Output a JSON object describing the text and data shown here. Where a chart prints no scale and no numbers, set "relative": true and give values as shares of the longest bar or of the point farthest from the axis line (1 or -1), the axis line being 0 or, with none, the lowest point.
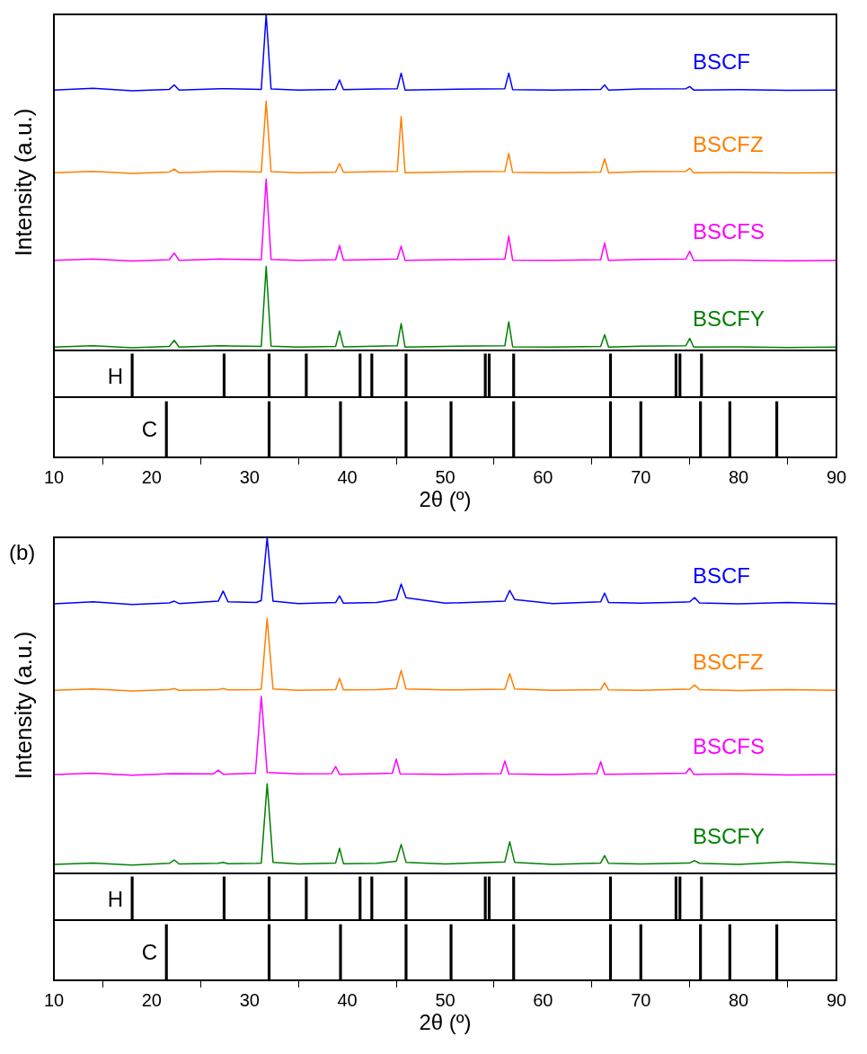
{
  "chart_data": [
    {
      "type": "line",
      "relative": true,
      "ylabel": "Intensity (a.u.)",
      "xlim": [
        10,
        90
      ],
      "legend": false,
      "marker": "none",
      "x": [
        10,
        14,
        18,
        21.8,
        22.3,
        22.8,
        27,
        31.2,
        31.7,
        32.2,
        35,
        38.8,
        39.2,
        39.6,
        43,
        45.1,
        45.5,
        45.9,
        50,
        56.1,
        56.5,
        56.9,
        61,
        65.9,
        66.3,
        66.7,
        70,
        74.6,
        75,
        75.4,
        80,
        85,
        90
      ],
      "series": [
        {
          "name": "BSCF",
          "color": "#0000ff",
          "values": [
            0.775,
            0.78,
            0.773,
            0.777,
            0.79,
            0.775,
            0.779,
            0.777,
            1.0,
            0.778,
            0.775,
            0.777,
            0.805,
            0.776,
            0.778,
            0.779,
            0.825,
            0.775,
            0.777,
            0.779,
            0.825,
            0.776,
            0.775,
            0.777,
            0.79,
            0.775,
            0.778,
            0.779,
            0.785,
            0.775,
            0.776,
            0.774,
            0.775
          ]
        },
        {
          "name": "BSCFZ",
          "color": "#ff7f00",
          "values": [
            0.529,
            0.533,
            0.527,
            0.531,
            0.54,
            0.529,
            0.533,
            0.531,
            0.742,
            0.532,
            0.529,
            0.531,
            0.556,
            0.53,
            0.532,
            0.533,
            0.696,
            0.529,
            0.531,
            0.533,
            0.586,
            0.53,
            0.529,
            0.531,
            0.57,
            0.529,
            0.532,
            0.533,
            0.542,
            0.529,
            0.53,
            0.528,
            0.529
          ]
        },
        {
          "name": "BSCFS",
          "color": "#ff00ff",
          "values": [
            0.268,
            0.272,
            0.266,
            0.27,
            0.29,
            0.268,
            0.272,
            0.27,
            0.51,
            0.271,
            0.268,
            0.27,
            0.312,
            0.269,
            0.271,
            0.272,
            0.31,
            0.268,
            0.27,
            0.272,
            0.34,
            0.269,
            0.268,
            0.27,
            0.32,
            0.268,
            0.271,
            0.272,
            0.295,
            0.268,
            0.269,
            0.267,
            0.268
          ]
        },
        {
          "name": "BSCFY",
          "color": "#008000",
          "values": [
            0.01,
            0.014,
            0.008,
            0.012,
            0.03,
            0.01,
            0.014,
            0.012,
            0.25,
            0.013,
            0.01,
            0.012,
            0.058,
            0.011,
            0.013,
            0.014,
            0.08,
            0.01,
            0.012,
            0.014,
            0.085,
            0.011,
            0.01,
            0.012,
            0.047,
            0.01,
            0.013,
            0.014,
            0.036,
            0.01,
            0.011,
            0.009,
            0.01
          ]
        }
      ]
    },
    {
      "type": "bar",
      "relative": true,
      "xlim": [
        10,
        90
      ],
      "legend": false,
      "series": [
        {
          "name": "H",
          "color": "#000000",
          "x": [
            18.0,
            27.4,
            32.0,
            35.8,
            41.3,
            42.5,
            46.0,
            54.1,
            54.5,
            57.0,
            66.9,
            73.6,
            74.0,
            76.2
          ],
          "values": [
            1,
            1,
            1,
            1,
            1,
            1,
            1,
            1,
            1,
            1,
            1,
            1,
            1,
            1
          ]
        }
      ]
    },
    {
      "type": "bar",
      "relative": true,
      "xlabel": "2θ (º)",
      "xlim": [
        10,
        90
      ],
      "xticks": [
        10,
        20,
        30,
        40,
        50,
        60,
        70,
        80,
        90
      ],
      "legend": false,
      "series": [
        {
          "name": "C",
          "color": "#000000",
          "x": [
            21.5,
            32.0,
            39.3,
            46.0,
            50.6,
            57.0,
            66.9,
            70.0,
            76.1,
            79.1,
            83.9
          ],
          "values": [
            1,
            1,
            1,
            1,
            1,
            1,
            1,
            1,
            1,
            1,
            1
          ]
        }
      ]
    },
    {
      "type": "line",
      "relative": true,
      "ylabel": "Intensity (a.u.)",
      "xlim": [
        10,
        90
      ],
      "legend": false,
      "marker": "none",
      "annotations": [
        "(b)"
      ],
      "x": [
        10,
        14,
        18,
        21.8,
        22.3,
        22.8,
        26.8,
        27.3,
        27.8,
        30.7,
        31.2,
        31.8,
        32.4,
        35,
        38.8,
        39.2,
        39.6,
        43,
        45.0,
        45.5,
        46.0,
        50,
        56.1,
        56.6,
        57.1,
        61,
        65.9,
        66.3,
        66.7,
        70,
        75.0,
        75.5,
        76,
        80,
        85,
        90
      ],
      "series": [
        {
          "name": "BSCF",
          "color": "#0000ff",
          "values": [
            0.802,
            0.808,
            0.8,
            0.805,
            0.81,
            0.803,
            0.81,
            0.84,
            0.808,
            0.806,
            0.812,
            1.0,
            0.81,
            0.803,
            0.806,
            0.826,
            0.804,
            0.806,
            0.815,
            0.861,
            0.82,
            0.804,
            0.81,
            0.842,
            0.815,
            0.803,
            0.808,
            0.834,
            0.806,
            0.804,
            0.808,
            0.821,
            0.805,
            0.802,
            0.806,
            0.802
          ]
        },
        {
          "name": "BSCFZ",
          "color": "#ff7f00",
          "values": [
            0.545,
            0.549,
            0.543,
            0.547,
            0.55,
            0.545,
            0.547,
            0.55,
            0.546,
            0.547,
            0.548,
            0.759,
            0.549,
            0.545,
            0.547,
            0.58,
            0.546,
            0.547,
            0.55,
            0.604,
            0.549,
            0.546,
            0.548,
            0.594,
            0.549,
            0.545,
            0.547,
            0.567,
            0.546,
            0.545,
            0.548,
            0.561,
            0.547,
            0.544,
            0.547,
            0.545
          ]
        },
        {
          "name": "BSCFS",
          "color": "#ff00ff",
          "x": [
            10,
            14,
            18,
            22,
            26.3,
            26.8,
            27.3,
            30.6,
            31.2,
            31.8,
            35,
            38.4,
            38.8,
            39.2,
            43,
            44.6,
            45.0,
            45.4,
            50,
            55.7,
            56.1,
            56.5,
            61,
            65.5,
            65.9,
            66.3,
            70,
            74.6,
            75.0,
            75.4,
            80,
            85,
            90
          ],
          "values": [
            0.294,
            0.298,
            0.292,
            0.297,
            0.296,
            0.307,
            0.295,
            0.298,
            0.527,
            0.3,
            0.296,
            0.297,
            0.318,
            0.295,
            0.297,
            0.298,
            0.34,
            0.296,
            0.295,
            0.297,
            0.334,
            0.296,
            0.294,
            0.297,
            0.332,
            0.295,
            0.296,
            0.298,
            0.313,
            0.295,
            0.296,
            0.293,
            0.294
          ]
        },
        {
          "name": "BSCFY",
          "color": "#008000",
          "values": [
            0.027,
            0.031,
            0.025,
            0.03,
            0.04,
            0.028,
            0.03,
            0.033,
            0.029,
            0.03,
            0.031,
            0.267,
            0.033,
            0.028,
            0.031,
            0.075,
            0.029,
            0.03,
            0.036,
            0.086,
            0.033,
            0.028,
            0.034,
            0.094,
            0.033,
            0.027,
            0.031,
            0.053,
            0.03,
            0.028,
            0.031,
            0.038,
            0.03,
            0.027,
            0.034,
            0.027
          ]
        }
      ]
    },
    {
      "type": "bar",
      "relative": true,
      "xlim": [
        10,
        90
      ],
      "legend": false,
      "series": [
        {
          "name": "H",
          "color": "#000000",
          "x": [
            18.0,
            27.4,
            32.0,
            35.8,
            41.3,
            42.5,
            46.0,
            54.1,
            54.5,
            57.0,
            66.9,
            73.6,
            74.0,
            76.2
          ],
          "values": [
            1,
            1,
            1,
            1,
            1,
            1,
            1,
            1,
            1,
            1,
            1,
            1,
            1,
            1
          ]
        }
      ]
    },
    {
      "type": "bar",
      "relative": true,
      "xlabel": "2θ (º)",
      "xlim": [
        10,
        90
      ],
      "xticks": [
        10,
        20,
        30,
        40,
        50,
        60,
        70,
        80,
        90
      ],
      "legend": false,
      "series": [
        {
          "name": "C",
          "color": "#000000",
          "x": [
            21.5,
            32.0,
            39.3,
            46.0,
            50.6,
            57.0,
            66.9,
            70.0,
            76.1,
            79.1,
            83.9
          ],
          "values": [
            1,
            1,
            1,
            1,
            1,
            1,
            1,
            1,
            1,
            1,
            1
          ]
        }
      ]
    }
  ]
}
